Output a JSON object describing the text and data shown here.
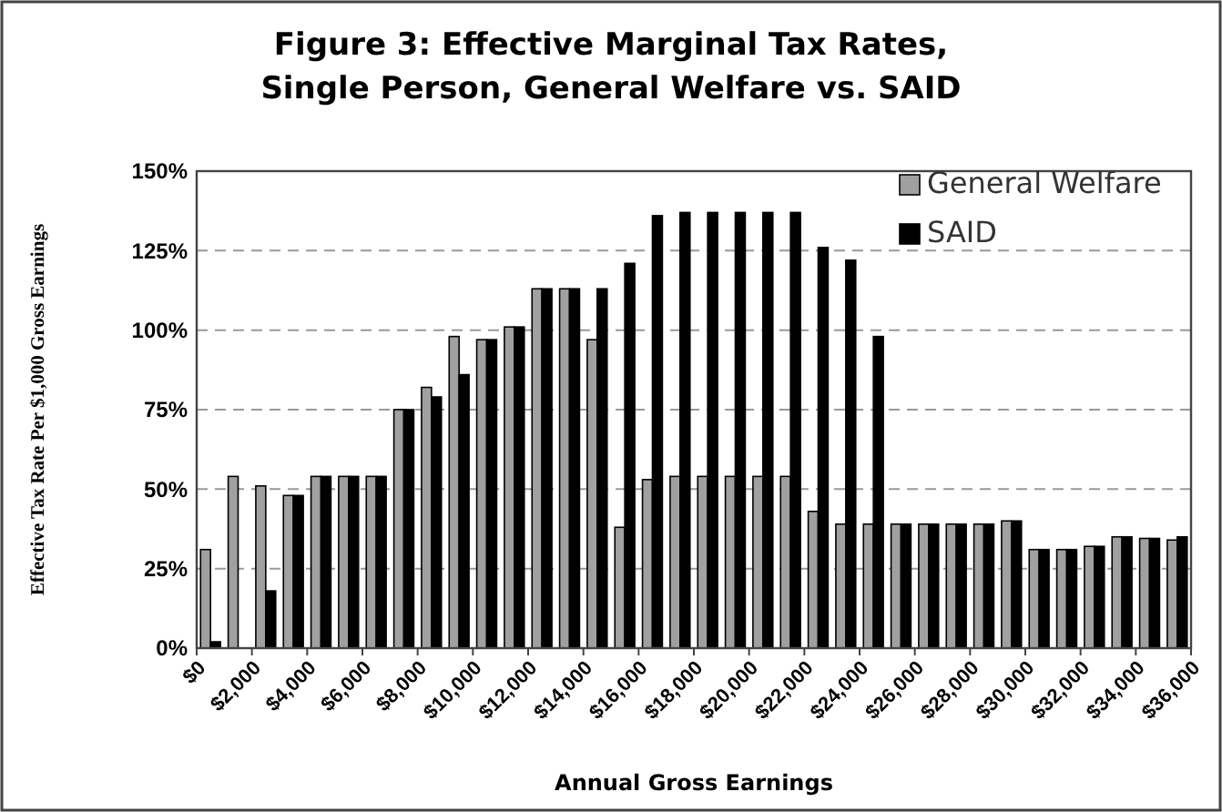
{
  "chart_data": {
    "type": "bar",
    "title": "Figure 3: Effective Marginal Tax Rates,\nSingle Person, General Welfare vs. SAID",
    "xlabel": "Annual Gross Earnings",
    "ylabel": "Effective Tax Rate Per $1,000 Gross Earnings",
    "x": [
      500,
      1500,
      2500,
      3500,
      4500,
      5500,
      6500,
      7500,
      8500,
      9500,
      10500,
      11500,
      12500,
      13500,
      14500,
      15500,
      16500,
      17500,
      18500,
      19500,
      20500,
      21500,
      22500,
      23500,
      24500,
      25500,
      26500,
      27500,
      28500,
      29500,
      30500,
      31500,
      32500,
      33500,
      34500,
      35500
    ],
    "xlim": [
      0,
      36000
    ],
    "xticks": [
      {
        "value": 0,
        "label": "$0"
      },
      {
        "value": 2000,
        "label": "$2,000"
      },
      {
        "value": 4000,
        "label": "$4,000"
      },
      {
        "value": 6000,
        "label": "$6,000"
      },
      {
        "value": 8000,
        "label": "$8,000"
      },
      {
        "value": 10000,
        "label": "$10,000"
      },
      {
        "value": 12000,
        "label": "$12,000"
      },
      {
        "value": 14000,
        "label": "$14,000"
      },
      {
        "value": 16000,
        "label": "$16,000"
      },
      {
        "value": 18000,
        "label": "$18,000"
      },
      {
        "value": 20000,
        "label": "$20,000"
      },
      {
        "value": 22000,
        "label": "$22,000"
      },
      {
        "value": 24000,
        "label": "$24,000"
      },
      {
        "value": 26000,
        "label": "$26,000"
      },
      {
        "value": 28000,
        "label": "$28,000"
      },
      {
        "value": 30000,
        "label": "$30,000"
      },
      {
        "value": 32000,
        "label": "$32,000"
      },
      {
        "value": 34000,
        "label": "$34,000"
      },
      {
        "value": 36000,
        "label": "$36,000"
      }
    ],
    "ylim": [
      0,
      150
    ],
    "yticks": [
      {
        "value": 0,
        "label": "0%"
      },
      {
        "value": 25,
        "label": "25%"
      },
      {
        "value": 50,
        "label": "50%"
      },
      {
        "value": 75,
        "label": "75%"
      },
      {
        "value": 100,
        "label": "100%"
      },
      {
        "value": 125,
        "label": "125%"
      },
      {
        "value": 150,
        "label": "150%"
      }
    ],
    "grid": "y",
    "legend": "top right",
    "series": [
      {
        "name": "General Welfare",
        "color": "#a0a0a0",
        "values": [
          31,
          54,
          51,
          48,
          54,
          54,
          54,
          75,
          82,
          98,
          97,
          101,
          113,
          113,
          97,
          38,
          53,
          54,
          54,
          54,
          54,
          54,
          43,
          39,
          39,
          39,
          39,
          39,
          39,
          40,
          31,
          31,
          32,
          35,
          34.5,
          34
        ]
      },
      {
        "name": "SAID",
        "color": "#000000",
        "values": [
          2,
          0,
          18,
          48,
          54,
          54,
          54,
          75,
          79,
          86,
          97,
          101,
          113,
          113,
          113,
          121,
          136,
          137,
          137,
          137,
          137,
          137,
          126,
          122,
          98,
          39,
          39,
          39,
          39,
          40,
          31,
          31,
          32,
          35,
          34.5,
          35
        ]
      }
    ]
  }
}
